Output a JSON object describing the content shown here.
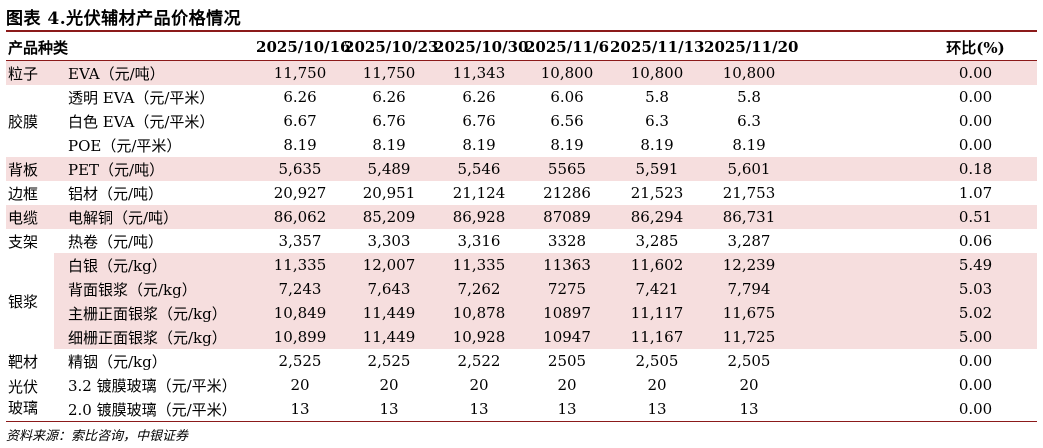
{
  "title": "图表 4.光伏辅材产品价格情况",
  "table": {
    "headers": [
      "产品种类",
      "",
      "2025/10/16",
      "2025/10/23",
      "2025/10/30",
      "2025/11/6",
      "2025/11/13",
      "2025/11/20",
      "环比(%)"
    ],
    "groups": [
      {
        "category": "粒子",
        "rows": [
          [
            "EVA（元/吨）",
            "11,750",
            "11,750",
            "11,343",
            "10,800",
            "10,800",
            "10,800",
            "0.00"
          ]
        ]
      },
      {
        "category": "胶膜",
        "rows": [
          [
            "透明 EVA（元/平米）",
            "6.26",
            "6.26",
            "6.26",
            "6.06",
            "5.8",
            "5.8",
            "0.00"
          ],
          [
            "白色 EVA（元/平米）",
            "6.67",
            "6.76",
            "6.76",
            "6.56",
            "6.3",
            "6.3",
            "0.00"
          ],
          [
            "POE（元/平米）",
            "8.19",
            "8.19",
            "8.19",
            "8.19",
            "8.19",
            "8.19",
            "0.00"
          ]
        ]
      },
      {
        "category": "背板",
        "rows": [
          [
            "PET（元/吨）",
            "5,635",
            "5,489",
            "5,546",
            "5565",
            "5,591",
            "5,601",
            "0.18"
          ]
        ]
      },
      {
        "category": "边框",
        "rows": [
          [
            "铝材（元/吨）",
            "20,927",
            "20,951",
            "21,124",
            "21286",
            "21,523",
            "21,753",
            "1.07"
          ]
        ]
      },
      {
        "category": "电缆",
        "rows": [
          [
            "电解铜（元/吨）",
            "86,062",
            "85,209",
            "86,928",
            "87089",
            "86,294",
            "86,731",
            "0.51"
          ]
        ]
      },
      {
        "category": "支架",
        "rows": [
          [
            "热卷（元/吨）",
            "3,357",
            "3,303",
            "3,316",
            "3328",
            "3,285",
            "3,287",
            "0.06"
          ]
        ]
      },
      {
        "category": "银浆",
        "rows": [
          [
            "白银（元/kg）",
            "11,335",
            "12,007",
            "11,335",
            "11363",
            "11,602",
            "12,239",
            "5.49"
          ],
          [
            "背面银浆（元/kg）",
            "7,243",
            "7,643",
            "7,262",
            "7275",
            "7,421",
            "7,794",
            "5.03"
          ],
          [
            "主栅正面银浆（元/kg）",
            "10,849",
            "11,449",
            "10,878",
            "10897",
            "11,117",
            "11,675",
            "5.02"
          ],
          [
            "细栅正面银浆（元/kg）",
            "10,899",
            "11,449",
            "10,928",
            "10947",
            "11,167",
            "11,725",
            "5.00"
          ]
        ]
      },
      {
        "category": "靶材",
        "rows": [
          [
            "精铟（元/kg）",
            "2,525",
            "2,525",
            "2,522",
            "2505",
            "2,505",
            "2,505",
            "0.00"
          ]
        ]
      },
      {
        "category": "光伏\n玻璃",
        "rows": [
          [
            "3.2 镀膜玻璃（元/平米）",
            "20",
            "20",
            "20",
            "20",
            "20",
            "20",
            "0.00"
          ],
          [
            "2.0 镀膜玻璃（元/平米）",
            "13",
            "13",
            "13",
            "13",
            "13",
            "13",
            "0.00"
          ]
        ]
      }
    ],
    "shaded_rows": [
      0,
      4,
      6,
      8,
      9,
      10,
      11
    ],
    "shade_color": "#f6dede",
    "rule_color": "#8b1a1a"
  },
  "source": "资料来源：索比咨询，中银证券"
}
